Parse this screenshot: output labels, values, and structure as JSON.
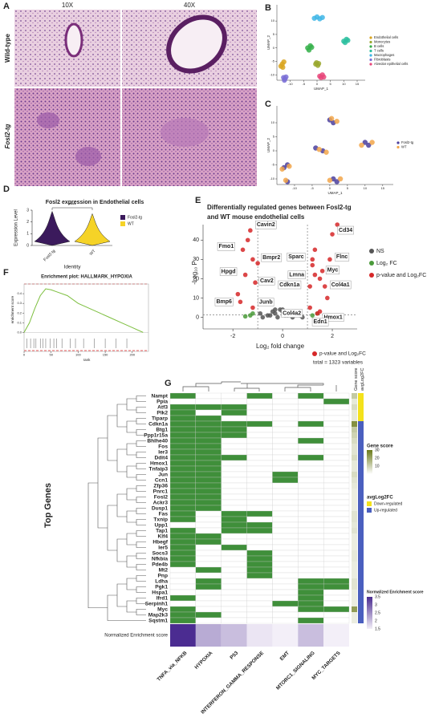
{
  "panel_labels": [
    "A",
    "B",
    "C",
    "D",
    "E",
    "F",
    "G"
  ],
  "histology": {
    "columns": [
      "10X",
      "40X"
    ],
    "rows": [
      "Wild-type",
      "Fosl2-tg"
    ]
  },
  "chart_data": [
    {
      "type": "scatter",
      "xlabel": "UMAP_1",
      "ylabel": "UMAP_2",
      "xlim": [
        -15,
        18
      ],
      "ylim": [
        -12,
        16
      ],
      "xticks": [
        -10,
        -5,
        0,
        5,
        10,
        15
      ],
      "yticks": [
        -10,
        -5,
        0,
        5,
        10
      ],
      "series": [
        {
          "name": "Endothelial cells",
          "color": "#d9a520",
          "x": [
            -13,
            -12.4,
            -13.5,
            -12.8
          ],
          "y": [
            -6,
            -5.2,
            -6.8,
            -7.2
          ]
        },
        {
          "name": "Monocytes",
          "color": "#9aa82e",
          "x": [
            -0.5,
            0.3,
            -0.2,
            0.6
          ],
          "y": [
            -6,
            -6.5,
            -5.5,
            -5.8
          ]
        },
        {
          "name": "B cells",
          "color": "#35b04a",
          "x": [
            -3.5,
            -2.5,
            -3,
            -2
          ],
          "y": [
            0,
            0.8,
            -0.8,
            0.2
          ]
        },
        {
          "name": "T cells",
          "color": "#2bbf9f",
          "x": [
            10,
            11,
            10.5,
            11.5
          ],
          "y": [
            2.5,
            3.2,
            2,
            2.8
          ]
        },
        {
          "name": "Macrophages",
          "color": "#3fb6e6",
          "x": [
            -1,
            0,
            1,
            2
          ],
          "y": [
            11,
            11.5,
            10.8,
            11.3
          ]
        },
        {
          "name": "Fibroblasts",
          "color": "#7a6fd6",
          "x": [
            -12.5,
            -12,
            -11.6,
            -12.2
          ],
          "y": [
            -11,
            -11.5,
            -10.8,
            -12
          ]
        },
        {
          "name": "Alveolar epithelial cells",
          "color": "#e8477a",
          "x": [
            1,
            2,
            1.5,
            2.5
          ],
          "y": [
            -10.5,
            -10,
            -11,
            -10.8
          ]
        }
      ]
    },
    {
      "type": "scatter",
      "xlabel": "UMAP_1",
      "ylabel": "UMAP_2",
      "xlim": [
        -15,
        18
      ],
      "ylim": [
        -12,
        16
      ],
      "xticks": [
        -10,
        -5,
        0,
        5,
        10,
        15
      ],
      "yticks": [
        -10,
        -5,
        0,
        5,
        10
      ],
      "series": [
        {
          "name": "Fosl2-tg",
          "color": "#4b3f9e",
          "x": [
            -13,
            -12,
            -2,
            -4,
            0,
            1,
            10,
            11,
            1,
            2,
            -12
          ],
          "y": [
            -6,
            -5,
            0,
            1,
            11,
            10,
            3,
            2,
            -10,
            -11,
            -11
          ]
        },
        {
          "name": "WT",
          "color": "#f2a64a",
          "x": [
            -13.5,
            -11.5,
            -3,
            -1,
            0.5,
            2,
            9,
            12,
            0,
            3,
            -12.5
          ],
          "y": [
            -6.5,
            -5.5,
            0.5,
            -0.5,
            11.5,
            10.5,
            2,
            3,
            -10.5,
            -10,
            -10.5
          ]
        }
      ]
    },
    {
      "type": "violin",
      "title": "Fosl2 expression in Endothelial cells",
      "xlabel": "Identity",
      "ylabel": "Expression Level",
      "categories": [
        "Fosl2-tg",
        "WT"
      ],
      "values": [
        2.9,
        2.7
      ],
      "colors": [
        "#3b1a5c",
        "#f5d327"
      ],
      "ylim": [
        0,
        3
      ],
      "yticks": [
        0,
        1,
        2,
        3
      ],
      "significance": "****"
    },
    {
      "type": "volcano",
      "title": [
        "Differentially regulated genes between Fosl2-tg",
        "and WT mouse endothelial cells"
      ],
      "xlabel": "Log₂ fold change",
      "ylabel": "-Log₁₀ P",
      "xlim": [
        -3.2,
        3.0
      ],
      "ylim": [
        -6,
        48
      ],
      "xticks": [
        -2,
        0,
        2
      ],
      "yticks": [
        0,
        10,
        20,
        30,
        40
      ],
      "xcutoffs": [
        -1,
        1
      ],
      "ycutoff": 1.3,
      "caption": "total = 1323 variables",
      "series": [
        {
          "name": "NS",
          "color": "#555555",
          "x": [
            -0.8,
            -0.5,
            -0.3,
            0,
            0.2,
            0.4,
            0.6,
            -0.6,
            -0.2,
            0.1,
            0.3,
            -0.4,
            0.5,
            0.7,
            -0.9,
            0.8,
            0,
            -0.1,
            0.2,
            -0.3
          ],
          "y": [
            0,
            1,
            2,
            3,
            1,
            0,
            2,
            1,
            0,
            1,
            2,
            3,
            3,
            1,
            2,
            0,
            4,
            4,
            3,
            4
          ]
        },
        {
          "name": "Log₂ FC",
          "color": "#4a9a3a",
          "x": [
            -1.3,
            -1.2,
            1.2,
            1.4,
            -1.5
          ],
          "y": [
            1,
            2,
            1,
            2,
            0.5
          ]
        },
        {
          "name": "p-value and Log₂FC",
          "color": "#d62728",
          "x": [
            -1.3,
            -1.6,
            -1.0,
            -1.5,
            -1.1,
            -1.7,
            -1.2,
            2.0,
            1.2,
            1.9,
            1.6,
            1.3,
            1.1,
            1.7,
            1.1,
            1.4,
            1.5,
            -1.4,
            -1.2,
            -1.8,
            1.3,
            1.5,
            1.8,
            2.2,
            1.2
          ],
          "y": [
            45,
            35,
            28,
            22,
            18,
            8,
            5,
            43,
            30,
            30,
            24,
            22,
            16,
            16,
            5,
            2,
            3,
            40,
            30,
            12,
            35,
            20,
            10,
            48,
            27
          ],
          "labels": [
            "Cavin2",
            "Fmo1",
            "Bmpr2",
            "Hpgd",
            "Cav2",
            "Bmp6",
            "Junb",
            "Cd34",
            "Sparc",
            "Flnc",
            "Myc",
            "Lmna",
            "Cdkn1a",
            "Col4a1",
            "Col4a2",
            "Hmox1",
            "Edn1",
            null,
            null,
            null,
            null,
            null,
            null,
            null,
            null
          ]
        }
      ]
    },
    {
      "type": "line",
      "title": "Enrichment plot: HALLMARK_HYPOXIA",
      "xlabel": "rank",
      "ylabel": "enrichment score",
      "xlim": [
        0,
        230
      ],
      "ylim": [
        -0.03,
        0.5
      ],
      "xticks": [
        0,
        50,
        100,
        150,
        200
      ],
      "yticks": [
        {
          "value": 0,
          "label": "0.0"
        },
        0.1,
        0.2,
        0.3,
        0.4
      ],
      "color": "#7dbf3f",
      "x": [
        0,
        10,
        20,
        30,
        40,
        50,
        60,
        80,
        100,
        120,
        140,
        160,
        180,
        200,
        220
      ],
      "y": [
        0,
        0.1,
        0.25,
        0.38,
        0.45,
        0.44,
        0.42,
        0.38,
        0.3,
        0.25,
        0.2,
        0.15,
        0.1,
        0.05,
        0
      ],
      "hits": [
        5,
        12,
        18,
        22,
        30,
        35,
        40,
        48,
        55,
        60,
        70,
        85,
        95,
        110,
        130,
        150,
        170,
        190
      ]
    },
    {
      "type": "heatmap",
      "ylabel": "Top Genes",
      "genes": [
        "Nampt",
        "Ppia",
        "Atf3",
        "Plk2",
        "Tiparp",
        "Cdkn1a",
        "Btg1",
        "Ppp1r15a",
        "Bhlhe40",
        "Fos",
        "Ier3",
        "Ddit4",
        "Hmox1",
        "Tnfaip3",
        "Jun",
        "Ccn1",
        "Zfp36",
        "Pnrc1",
        "Fosl2",
        "Ackr3",
        "Dusp1",
        "Fas",
        "Txnip",
        "Upp1",
        "Tap1",
        "Klf4",
        "Hbegf",
        "Ier5",
        "Socs3",
        "Nfkbia",
        "Pde4b",
        "Mt2",
        "Pnp",
        "Ldha",
        "Pgk1",
        "Hspa1",
        "Ifrd1",
        "Serpinh1",
        "Myc",
        "Map2k3",
        "Sqstm1"
      ],
      "pathways": [
        "TNFA_via_NFKB",
        "HYPOXIA",
        "P53",
        "INTERFERON_GAMMA_RESPONSE",
        "EMT",
        "MTORC1_SIGNALING",
        "MYC_TARGETS"
      ],
      "member_color": "#3f8f3a",
      "membership": [
        [
          1,
          0,
          0,
          1,
          0,
          1,
          0
        ],
        [
          0,
          0,
          0,
          0,
          0,
          0,
          1
        ],
        [
          1,
          1,
          1,
          0,
          0,
          0,
          0
        ],
        [
          1,
          0,
          1,
          0,
          0,
          0,
          0
        ],
        [
          1,
          1,
          0,
          0,
          0,
          0,
          0
        ],
        [
          1,
          1,
          1,
          1,
          0,
          1,
          0
        ],
        [
          1,
          1,
          1,
          0,
          0,
          0,
          0
        ],
        [
          1,
          1,
          1,
          0,
          0,
          0,
          0
        ],
        [
          1,
          1,
          0,
          0,
          0,
          1,
          0
        ],
        [
          1,
          1,
          0,
          0,
          0,
          0,
          0
        ],
        [
          1,
          1,
          0,
          0,
          0,
          0,
          0
        ],
        [
          1,
          1,
          1,
          0,
          0,
          1,
          0
        ],
        [
          1,
          1,
          0,
          0,
          0,
          0,
          0
        ],
        [
          1,
          1,
          0,
          0,
          0,
          0,
          0
        ],
        [
          1,
          1,
          0,
          0,
          1,
          0,
          0
        ],
        [
          1,
          1,
          0,
          0,
          1,
          0,
          0
        ],
        [
          1,
          1,
          0,
          0,
          0,
          0,
          0
        ],
        [
          1,
          1,
          0,
          0,
          0,
          0,
          0
        ],
        [
          1,
          1,
          0,
          0,
          0,
          0,
          0
        ],
        [
          1,
          1,
          0,
          0,
          0,
          0,
          0
        ],
        [
          1,
          1,
          0,
          0,
          0,
          0,
          0
        ],
        [
          1,
          0,
          1,
          1,
          0,
          0,
          0
        ],
        [
          1,
          0,
          1,
          0,
          0,
          0,
          0
        ],
        [
          0,
          0,
          1,
          1,
          0,
          0,
          0
        ],
        [
          1,
          0,
          1,
          1,
          0,
          0,
          0
        ],
        [
          1,
          1,
          0,
          0,
          0,
          0,
          0
        ],
        [
          1,
          1,
          0,
          0,
          0,
          0,
          0
        ],
        [
          1,
          0,
          1,
          0,
          0,
          0,
          0
        ],
        [
          1,
          0,
          0,
          1,
          0,
          0,
          0
        ],
        [
          1,
          0,
          0,
          1,
          0,
          0,
          0
        ],
        [
          1,
          0,
          0,
          1,
          0,
          0,
          0
        ],
        [
          0,
          1,
          0,
          1,
          0,
          0,
          0
        ],
        [
          0,
          0,
          0,
          1,
          0,
          0,
          0
        ],
        [
          0,
          1,
          0,
          0,
          0,
          1,
          1
        ],
        [
          0,
          1,
          0,
          0,
          0,
          1,
          1
        ],
        [
          0,
          0,
          0,
          0,
          0,
          1,
          0
        ],
        [
          1,
          0,
          0,
          0,
          0,
          1,
          0
        ],
        [
          0,
          0,
          0,
          0,
          1,
          1,
          0
        ],
        [
          1,
          0,
          0,
          0,
          0,
          1,
          1
        ],
        [
          1,
          1,
          0,
          0,
          0,
          0,
          0
        ],
        [
          1,
          0,
          0,
          0,
          0,
          1,
          0
        ]
      ],
      "gene_score_title": "Gene score",
      "gene_score_ticks": [
        10,
        20,
        30
      ],
      "gene_score": [
        12,
        5,
        8,
        5,
        5,
        25,
        12,
        10,
        8,
        6,
        6,
        8,
        5,
        5,
        8,
        6,
        5,
        4,
        4,
        4,
        4,
        6,
        6,
        5,
        6,
        4,
        4,
        4,
        5,
        5,
        4,
        4,
        4,
        6,
        6,
        4,
        4,
        4,
        22,
        4,
        4
      ],
      "avglog2fc_title": "avgLog2FC",
      "avglog2fc_labels": [
        "Down-regulated",
        "Up-regulated"
      ],
      "avglog2fc_colors": [
        "#f4e21c",
        "#4a5fbf"
      ],
      "avglog2fc": [
        0,
        0,
        0,
        0,
        0,
        1,
        1,
        1,
        1,
        1,
        1,
        1,
        1,
        1,
        1,
        1,
        1,
        1,
        1,
        1,
        1,
        1,
        1,
        1,
        1,
        1,
        1,
        1,
        1,
        1,
        1,
        1,
        1,
        1,
        1,
        1,
        1,
        1,
        1,
        1,
        1
      ],
      "nes_title": "Normalized Enrichment score",
      "nes_ticks": [
        1.5,
        2,
        2.5,
        3,
        3.5
      ],
      "nes": [
        3.5,
        2.2,
        2.0,
        1.6,
        1.5,
        2.0,
        1.5
      ]
    }
  ]
}
